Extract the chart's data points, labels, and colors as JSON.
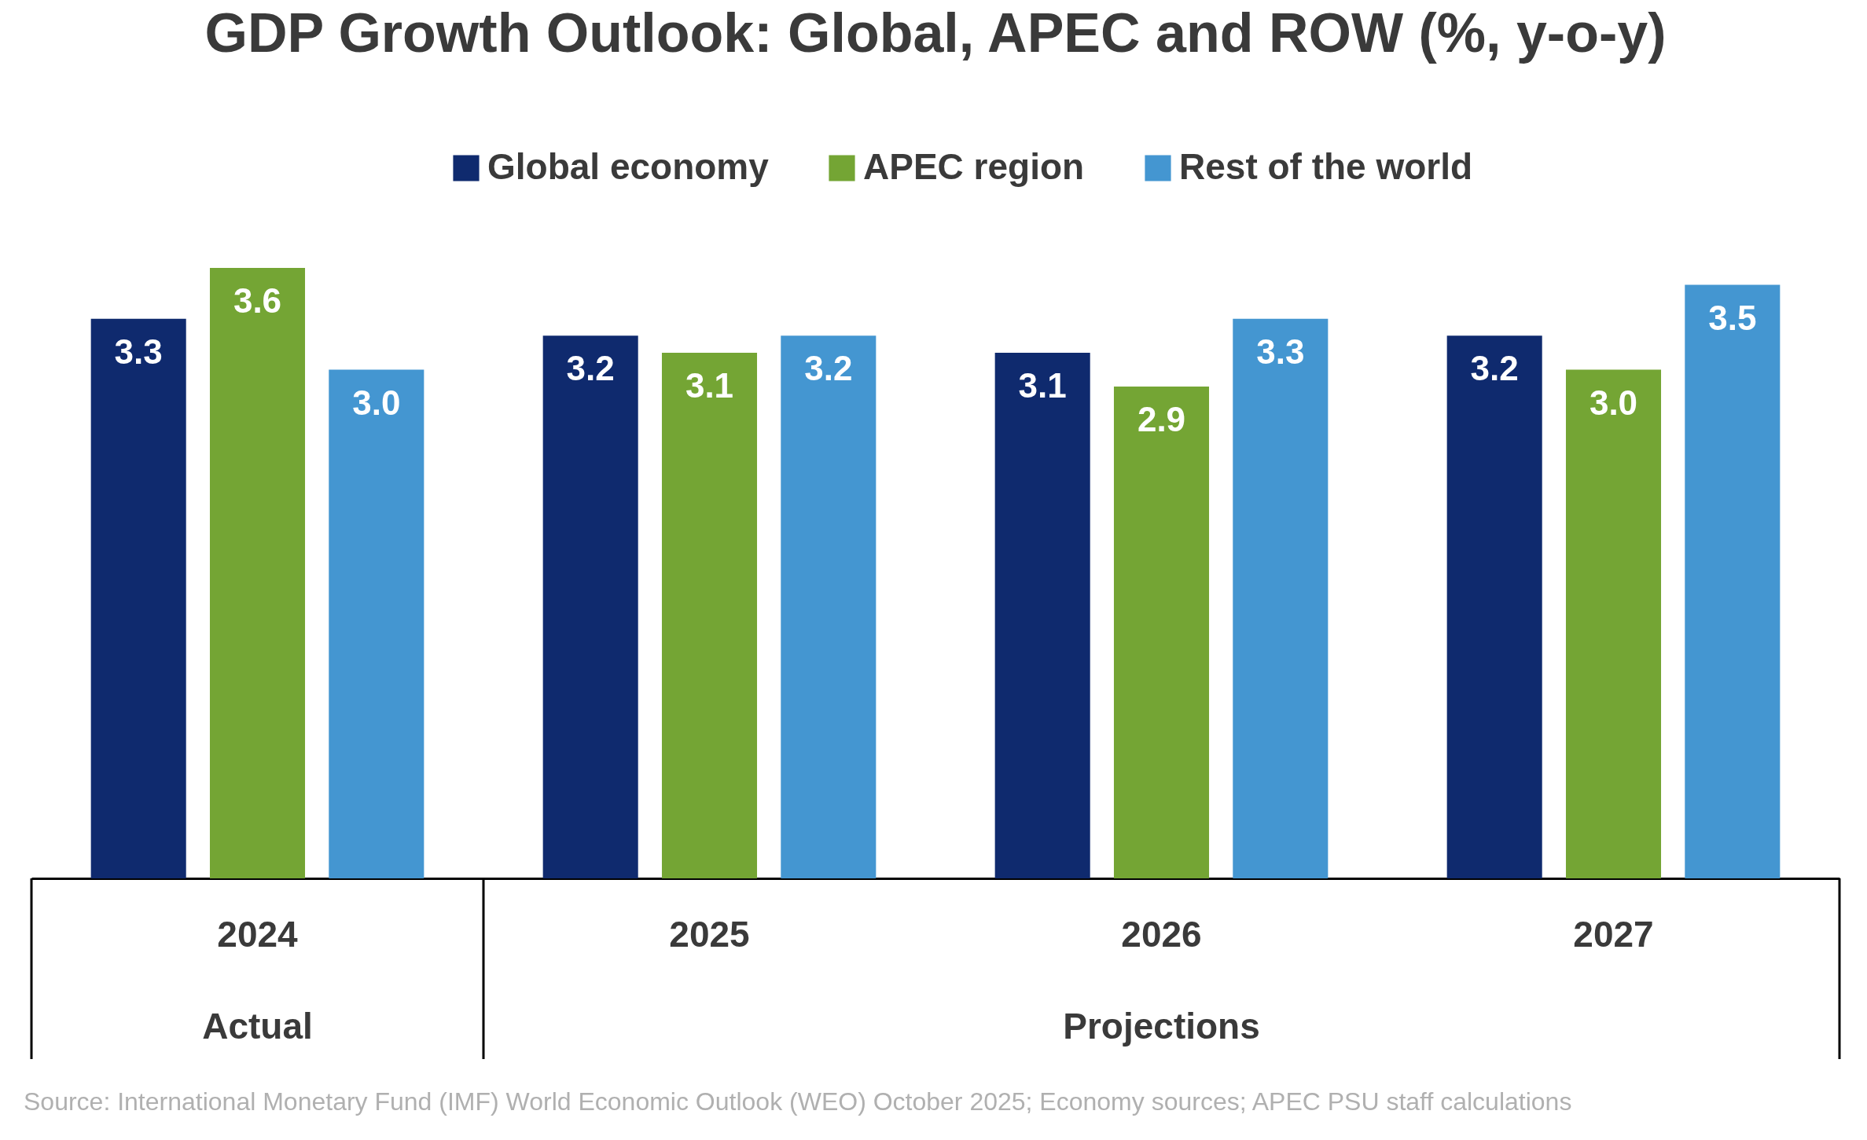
{
  "chart_data": {
    "type": "bar",
    "title": "GDP Growth Outlook: Global, APEC and ROW (%, y-o-y)",
    "categories": [
      "2024",
      "2025",
      "2026",
      "2027"
    ],
    "series": [
      {
        "name": "Global economy",
        "color": "#0f2a6e",
        "values": [
          3.3,
          3.2,
          3.1,
          3.2
        ],
        "value_labels": [
          "3.3",
          "3.2",
          "3.1",
          "3.2"
        ]
      },
      {
        "name": "APEC region",
        "color": "#74a534",
        "values": [
          3.6,
          3.1,
          2.9,
          3.0
        ],
        "value_labels": [
          "3.6",
          "3.1",
          "2.9",
          "3.0"
        ]
      },
      {
        "name": "Rest of the world",
        "color": "#4496d1",
        "values": [
          3.0,
          3.2,
          3.3,
          3.5
        ],
        "value_labels": [
          "3.0",
          "3.2",
          "3.3",
          "3.5"
        ]
      }
    ],
    "ylim": [
      0,
      3.6
    ],
    "legend": "top",
    "grid": false,
    "tick_labels": "x",
    "annotations": [
      "Actual",
      "Projections",
      "Source: International Monetary Fund (IMF) World Economic Outlook (WEO) October 2025; Economy sources; APEC PSU staff calculations"
    ]
  }
}
